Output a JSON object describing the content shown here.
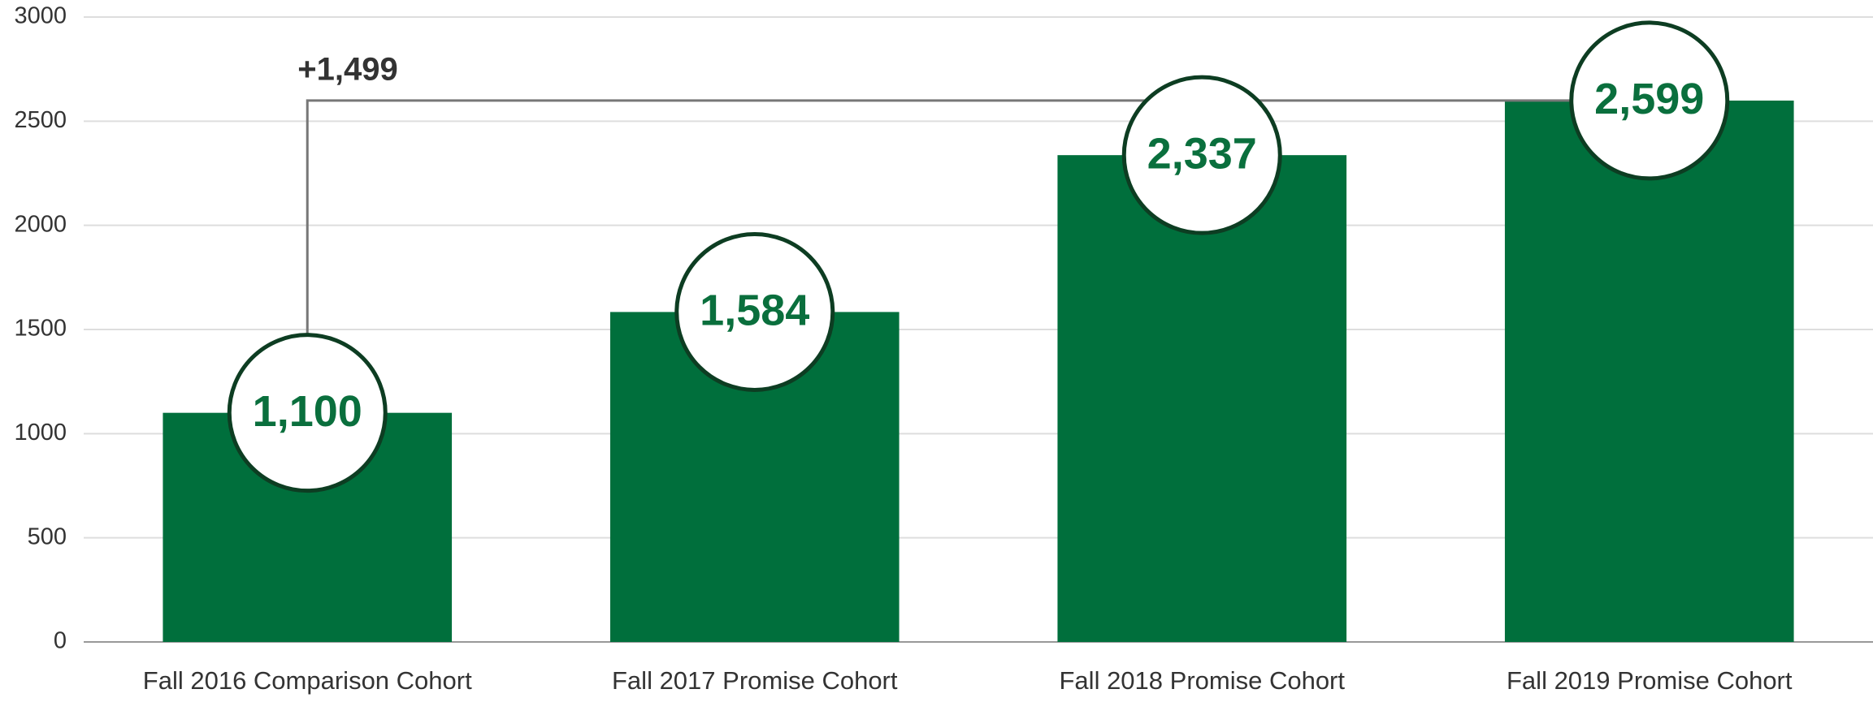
{
  "chart_data": {
    "type": "bar",
    "categories": [
      "Fall 2016 Comparison Cohort",
      "Fall 2017 Promise Cohort",
      "Fall 2018 Promise Cohort",
      "Fall 2019 Promise Cohort"
    ],
    "values": [
      1100,
      1584,
      2337,
      2599
    ],
    "value_labels": [
      "1,100",
      "1,584",
      "2,337",
      "2,599"
    ],
    "color": "#006f3c",
    "annotation": "+1,499",
    "ylim": [
      0,
      3000
    ],
    "yticks": [
      0,
      500,
      1000,
      1500,
      2000,
      2500,
      3000
    ],
    "grid": true
  }
}
